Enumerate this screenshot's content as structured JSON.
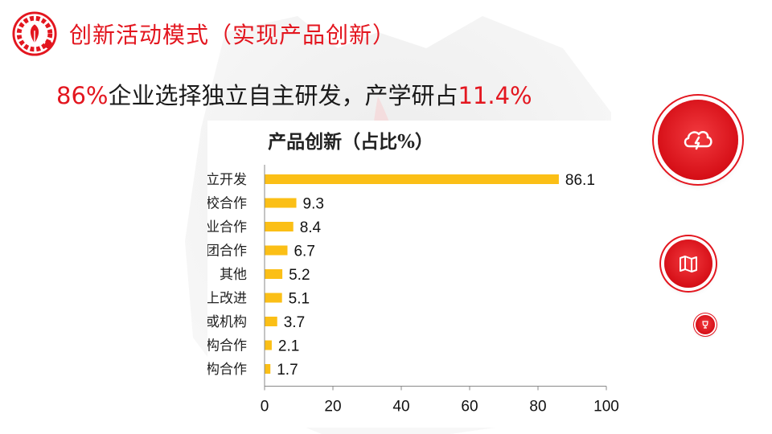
{
  "header": {
    "title": "创新活动模式（实现产品创新）"
  },
  "subtitle": {
    "part1": "86%",
    "part2": "企业选择独立自主研发，产学研占",
    "part3": "11.4%"
  },
  "colors": {
    "accent": "#e3161f",
    "bar": "#fbbf16"
  },
  "icons": {
    "logo": "gear-leaf-logo-icon",
    "big_button": "cloud-lightning-icon",
    "mid_button": "map-icon",
    "small_button": "trophy-icon"
  },
  "chart_data": {
    "type": "bar",
    "orientation": "horizontal",
    "title": "产品创新（占比%）",
    "categories": [
      "企业独立开发",
      "与境内高校合作",
      "与境内企业合作",
      "与内部集团合作",
      "其他",
      "在他人基础上改进",
      "其他企业或机构",
      "与境内研究机构合作",
      "与境外研究机构合作"
    ],
    "values": [
      86.1,
      9.3,
      8.4,
      6.7,
      5.2,
      5.1,
      3.7,
      2.1,
      1.7
    ],
    "value_labels": [
      "86.1",
      "9.3",
      "8.4",
      "6.7",
      "5.2",
      "5.1",
      "3.7",
      "2.1",
      "1.7"
    ],
    "xlim": [
      0,
      100
    ],
    "xticks": [
      0,
      20,
      40,
      60,
      80,
      100
    ],
    "xtick_labels": [
      "0",
      "20",
      "40",
      "60",
      "80",
      "100"
    ],
    "grid": false,
    "legend": "none"
  }
}
